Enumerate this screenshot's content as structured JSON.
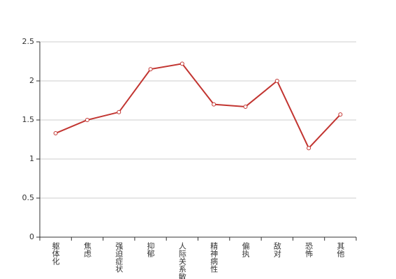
{
  "chart_data": {
    "type": "line",
    "categories": [
      "躯体化",
      "焦虑",
      "强迫症状",
      "抑郁",
      "人际关系敏感",
      "精神病性",
      "偏执",
      "敌对",
      "恐怖",
      "其他"
    ],
    "values": [
      1.33,
      1.5,
      1.6,
      2.15,
      2.22,
      1.7,
      1.67,
      2.0,
      1.14,
      1.57
    ],
    "color": "#c23531",
    "ylim": [
      0,
      2.5
    ],
    "yticks": [
      0,
      0.5,
      1,
      1.5,
      2,
      2.5
    ],
    "grid": true
  }
}
